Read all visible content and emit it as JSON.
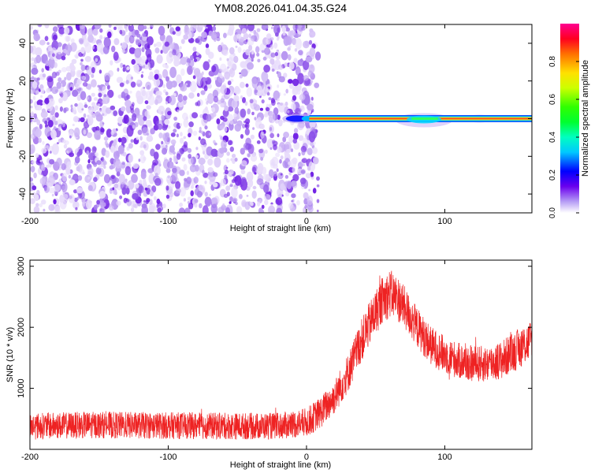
{
  "figure_title": "YM08.2026.041.04.35.G24",
  "colors": {
    "snr_line": "#ee2222",
    "spec_bg_purple": "#8a2be2",
    "spec_dark_purple": "#6a00d8",
    "axes": "#000000"
  },
  "chart_data": [
    {
      "type": "heatmap",
      "name": "spectrogram",
      "title": "",
      "xlabel": "Height of straight line (km)",
      "ylabel": "Frequency (Hz)",
      "xlim": [
        -200,
        163
      ],
      "ylim": [
        -50,
        50
      ],
      "xticks": [
        -200,
        -100,
        0,
        100
      ],
      "yticks": [
        -40,
        -20,
        0,
        20,
        40
      ],
      "noise_region_x": [
        -200,
        5
      ],
      "signal_band": {
        "x_start": -20,
        "x_end": 163,
        "freq": 0,
        "amplitude": 1.0
      },
      "colorbar": {
        "label": "Normalized spectral amplitude",
        "range": [
          0.0,
          1.0
        ],
        "ticks": [
          0.0,
          0.2,
          0.4,
          0.6,
          0.8
        ],
        "colormap": "rainbow"
      }
    },
    {
      "type": "line",
      "name": "snr",
      "title": "",
      "xlabel": "Height of straight line (km)",
      "ylabel": "SNR (10 * v/v)",
      "xlim": [
        -200,
        163
      ],
      "ylim": [
        0,
        3100
      ],
      "xticks": [
        -200,
        -100,
        0,
        100
      ],
      "yticks": [
        1000,
        2000,
        3000
      ],
      "series": [
        {
          "name": "SNR",
          "x": [
            -200,
            -150,
            -100,
            -50,
            -20,
            0,
            10,
            20,
            30,
            40,
            50,
            55,
            60,
            65,
            70,
            80,
            90,
            100,
            110,
            120,
            130,
            140,
            150,
            160,
            163
          ],
          "values": [
            380,
            400,
            390,
            380,
            380,
            440,
            600,
            850,
            1250,
            1800,
            2250,
            2450,
            2550,
            2500,
            2350,
            2000,
            1700,
            1550,
            1450,
            1400,
            1400,
            1450,
            1600,
            1750,
            1800
          ],
          "noise_amplitude": [
            220,
            220,
            220,
            220,
            220,
            240,
            260,
            280,
            320,
            350,
            380,
            380,
            400,
            380,
            360,
            330,
            320,
            310,
            300,
            300,
            300,
            320,
            330,
            340,
            340
          ]
        }
      ]
    }
  ]
}
